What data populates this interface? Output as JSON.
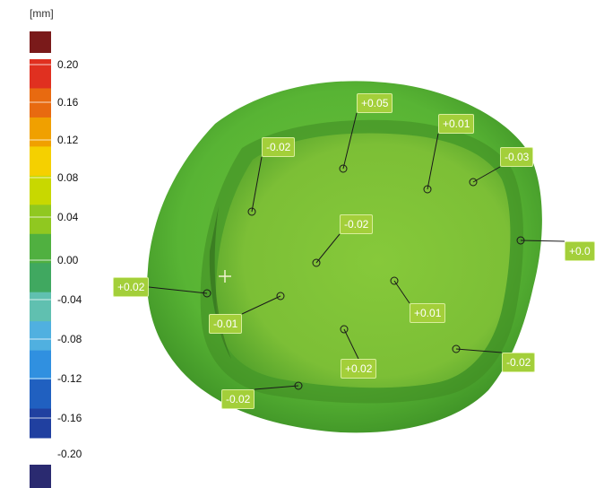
{
  "scale": {
    "unit": "[mm]",
    "ticks": [
      "0.20",
      "0.16",
      "0.12",
      "0.08",
      "0.04",
      "0.00",
      "-0.04",
      "-0.08",
      "-0.12",
      "-0.16",
      "-0.20"
    ],
    "colors": [
      "#7a1a1a",
      "#e03020",
      "#e86a10",
      "#f0a000",
      "#f5d000",
      "#c8d800",
      "#90c820",
      "#50b040",
      "#40a860",
      "#60c0b0",
      "#50b0e0",
      "#3090e0",
      "#2060c0",
      "#2040a0",
      "#2a2a70"
    ]
  },
  "annotations": [
    {
      "label": "+0.05"
    },
    {
      "label": "+0.01"
    },
    {
      "label": "-0.02"
    },
    {
      "label": "-0.03"
    },
    {
      "label": "-0.02"
    },
    {
      "label": "+0.0"
    },
    {
      "label": "+0.02"
    },
    {
      "label": "+0.01"
    },
    {
      "label": "-0.01"
    },
    {
      "label": "+0.02"
    },
    {
      "label": "-0.02"
    },
    {
      "label": "-0.02"
    }
  ]
}
